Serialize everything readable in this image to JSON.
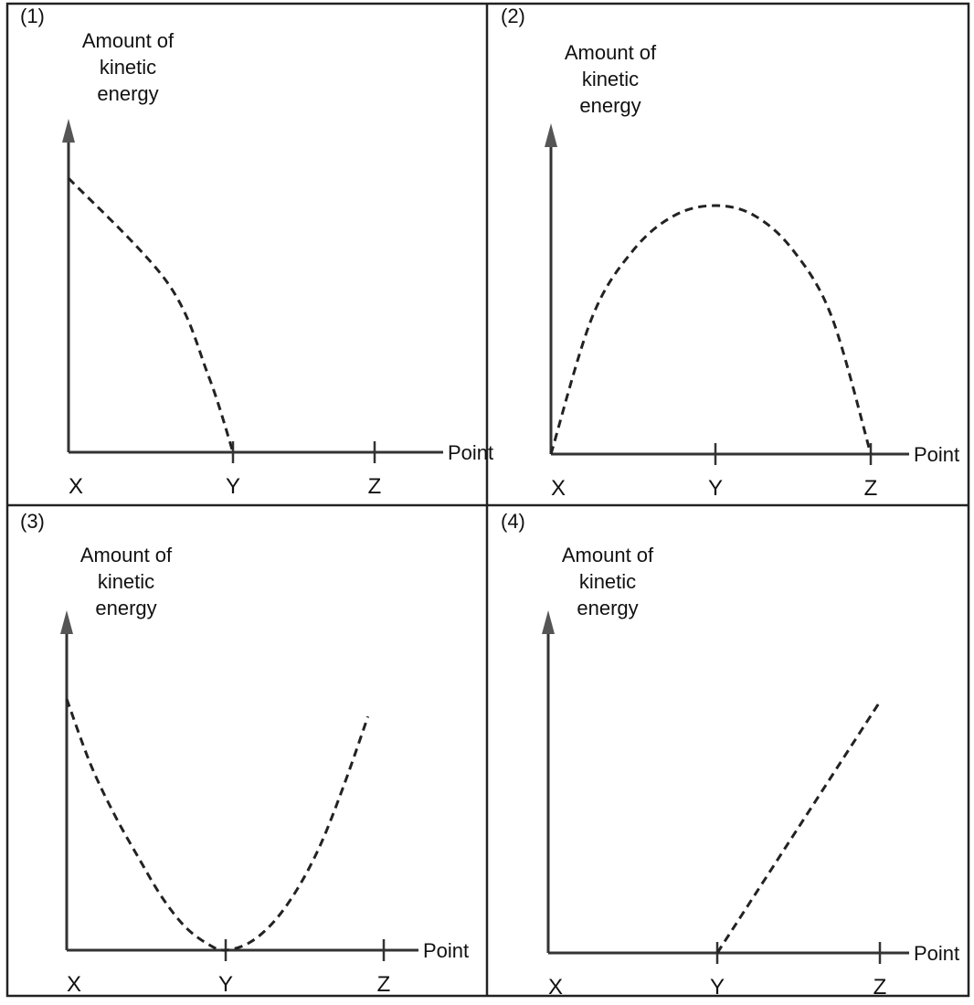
{
  "chart_data": [
    {
      "type": "line",
      "panel_label": "(1)",
      "ylabel": [
        "Amount of",
        "kinetic",
        "energy"
      ],
      "xlabel": "Point",
      "categories": [
        "X",
        "Y",
        "Z"
      ],
      "x": [
        0,
        0.6,
        0.85,
        1
      ],
      "series": [
        {
          "values": [
            1,
            0.62,
            0.28,
            0
          ]
        }
      ]
    },
    {
      "type": "line",
      "panel_label": "(2)",
      "ylabel": [
        "Amount of",
        "kinetic",
        "energy"
      ],
      "xlabel": "Point",
      "categories": [
        "X",
        "Y",
        "Z"
      ],
      "x": [
        0,
        0.25,
        0.5,
        0.75,
        1,
        1.25,
        1.5,
        1.75,
        2
      ],
      "series": [
        {
          "values": [
            0,
            0.55,
            0.82,
            0.96,
            1,
            0.96,
            0.82,
            0.55,
            0
          ]
        }
      ]
    },
    {
      "type": "line",
      "panel_label": "(3)",
      "ylabel": [
        "Amount of",
        "kinetic",
        "energy"
      ],
      "xlabel": "Point",
      "categories": [
        "X",
        "Y",
        "Z"
      ],
      "x": [
        0,
        0.15,
        0.3,
        0.45,
        0.6,
        0.75,
        0.9,
        1,
        1.15,
        1.3,
        1.45,
        1.6,
        1.75,
        1.9
      ],
      "series": [
        {
          "values": [
            1,
            0.74,
            0.54,
            0.37,
            0.21,
            0.09,
            0.02,
            0,
            0.03,
            0.11,
            0.24,
            0.42,
            0.66,
            0.93
          ]
        }
      ]
    },
    {
      "type": "line",
      "panel_label": "(4)",
      "ylabel": [
        "Amount of",
        "kinetic",
        "energy"
      ],
      "xlabel": "Point",
      "categories": [
        "X",
        "Y",
        "Z"
      ],
      "x": [
        1,
        1.5,
        2
      ],
      "series": [
        {
          "values": [
            0,
            0.5,
            1
          ]
        }
      ]
    }
  ]
}
